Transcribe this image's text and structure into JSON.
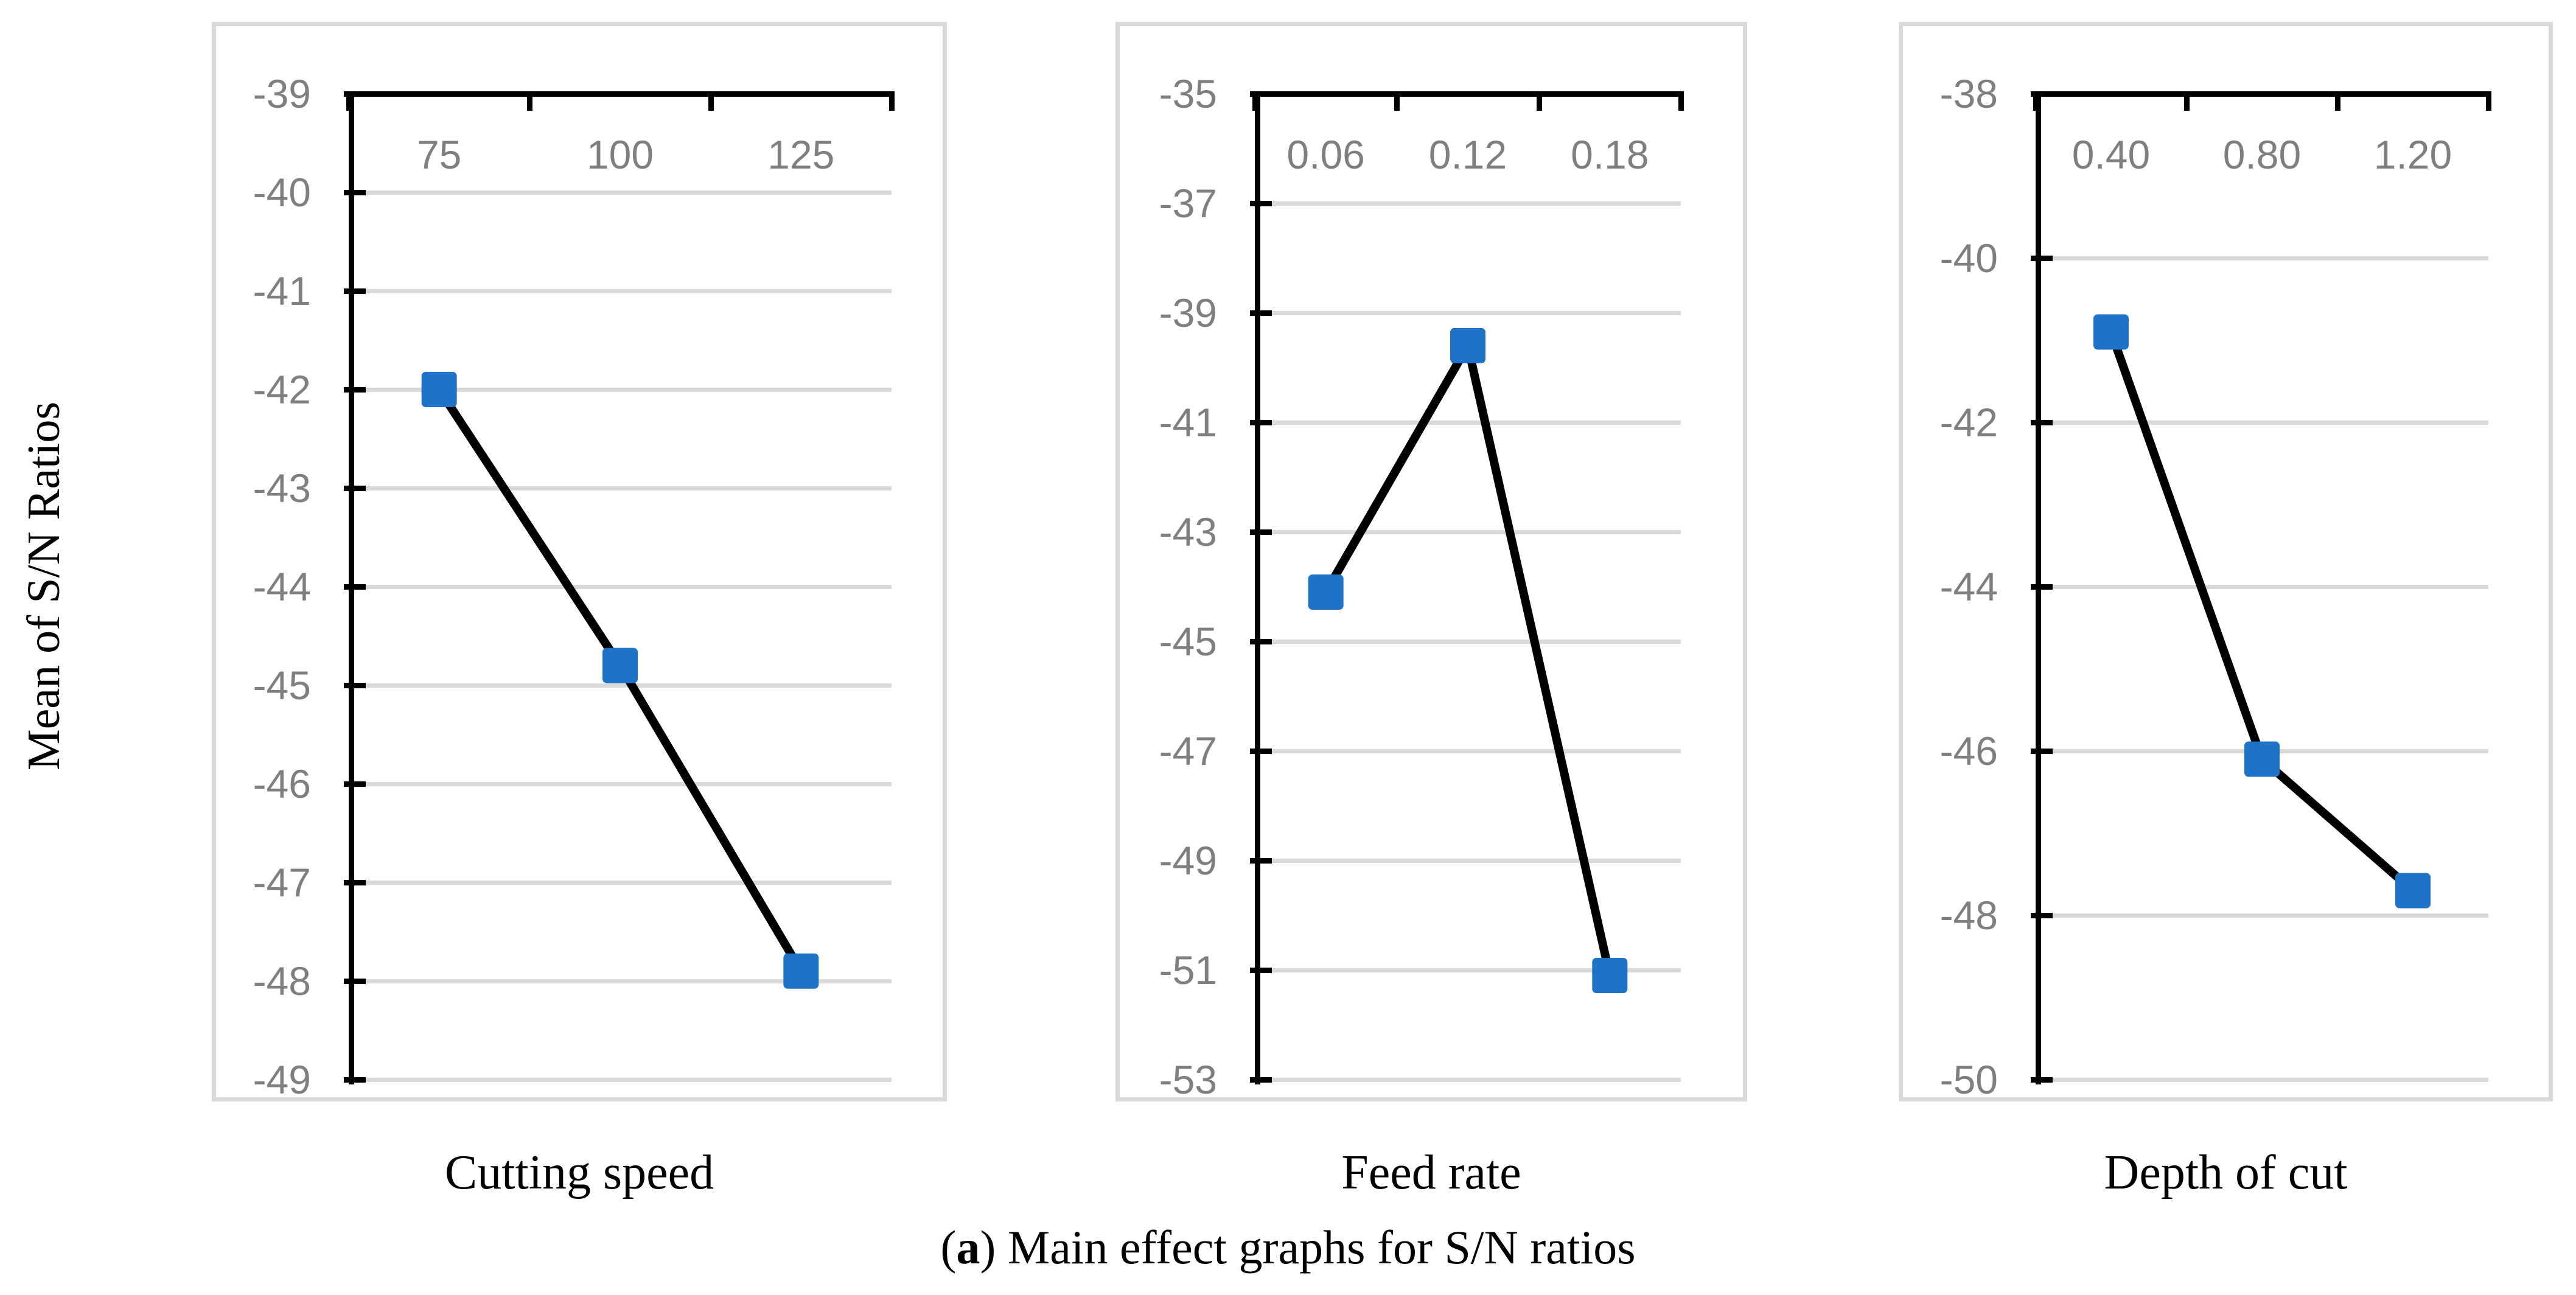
{
  "figure": {
    "y_axis_label": "Mean of S/N Ratios",
    "caption": {
      "open": "(",
      "label": "a",
      "rest": ") Main effect graphs for S/N ratios"
    }
  },
  "style": {
    "accent": "#1E73C8",
    "grid_color": "#D9D9D9",
    "axis_color": "#000000",
    "tick_label_color": "#7F7F7F",
    "panel_border_color": "#D9D9D9"
  },
  "chart_data": [
    {
      "type": "line",
      "title": "Cutting speed",
      "categories": [
        "75",
        "100",
        "125"
      ],
      "values": [
        -42.0,
        -44.8,
        -47.9
      ],
      "ylim": [
        -39,
        -49
      ],
      "y_ticks": [
        "-39",
        "-40",
        "-41",
        "-42",
        "-43",
        "-44",
        "-45",
        "-46",
        "-47",
        "-48",
        "-49"
      ],
      "x_axis_position": "top",
      "grid": true,
      "marker": "square",
      "legend": "none"
    },
    {
      "type": "line",
      "title": "Feed rate",
      "categories": [
        "0.06",
        "0.12",
        "0.18"
      ],
      "values": [
        -44.1,
        -39.6,
        -51.1
      ],
      "ylim": [
        -35,
        -53
      ],
      "y_ticks": [
        "-35",
        "-37",
        "-39",
        "-41",
        "-43",
        "-45",
        "-47",
        "-49",
        "-51",
        "-53"
      ],
      "x_axis_position": "top",
      "grid": true,
      "marker": "square",
      "legend": "none"
    },
    {
      "type": "line",
      "title": "Depth of cut",
      "categories": [
        "0.40",
        "0.80",
        "1.20"
      ],
      "values": [
        -40.9,
        -46.1,
        -47.7
      ],
      "ylim": [
        -38,
        -50
      ],
      "y_ticks": [
        "-38",
        "-40",
        "-42",
        "-44",
        "-46",
        "-48",
        "-50"
      ],
      "x_axis_position": "top",
      "grid": true,
      "marker": "square",
      "legend": "none"
    }
  ]
}
